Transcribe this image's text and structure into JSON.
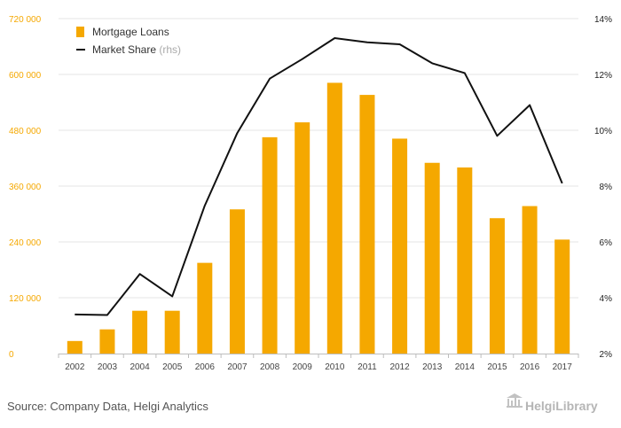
{
  "chart_data": {
    "type": "bar",
    "categories": [
      "2002",
      "2003",
      "2004",
      "2005",
      "2006",
      "2007",
      "2008",
      "2009",
      "2010",
      "2011",
      "2012",
      "2013",
      "2014",
      "2015",
      "2016",
      "2017"
    ],
    "series": [
      {
        "name": "Mortgage Loans",
        "type": "bar",
        "axis": "left",
        "color": "#f5a800",
        "values": [
          27000,
          52000,
          92000,
          92000,
          195000,
          310000,
          465000,
          497000,
          582000,
          556000,
          462000,
          410000,
          400000,
          291000,
          317000,
          245000
        ]
      },
      {
        "name": "Market Share",
        "name_suffix": "(rhs)",
        "type": "line",
        "axis": "right",
        "color": "#111111",
        "values": [
          3.4,
          3.38,
          4.85,
          4.05,
          7.3,
          9.9,
          11.85,
          12.55,
          13.3,
          13.15,
          13.08,
          12.4,
          12.05,
          9.8,
          10.9,
          8.1
        ]
      }
    ],
    "y_left": {
      "min": 0,
      "max": 720000,
      "ticks": [
        0,
        120000,
        240000,
        360000,
        480000,
        600000,
        720000
      ],
      "tick_labels": [
        "0",
        "120 000",
        "240 000",
        "360 000",
        "480 000",
        "600 000",
        "720 000"
      ],
      "tick_color": "#f5a800"
    },
    "y_right": {
      "min": 2,
      "max": 14,
      "ticks": [
        2,
        4,
        6,
        8,
        10,
        12,
        14
      ],
      "tick_labels": [
        "2%",
        "4%",
        "6%",
        "8%",
        "10%",
        "12%",
        "14%"
      ]
    },
    "grid": true,
    "legend_position": "top-left",
    "source": "Source: Company Data, Helgi Analytics",
    "brand": "HelgiLibrary"
  }
}
